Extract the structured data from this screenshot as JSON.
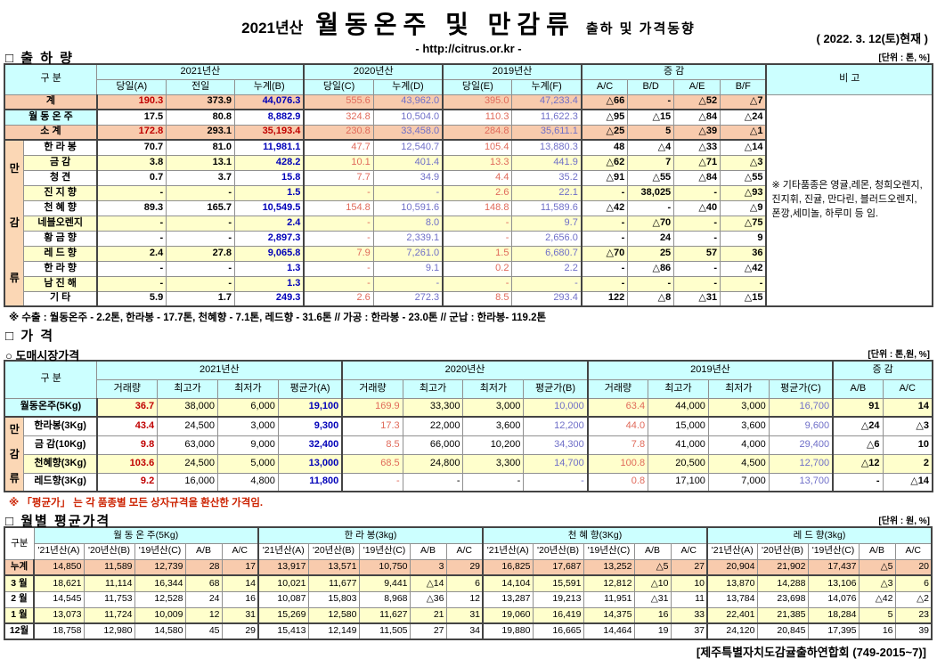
{
  "colors": {
    "header_bg": "#CCFFFF",
    "total_row": "#F8CBAD",
    "group_cell": "#FBD7B5",
    "alt_row": "#FFFFCC",
    "red_bold": "#C00000",
    "red_soft": "#E06A5A",
    "blue_bold": "#0000B8",
    "blue_soft": "#6F6FC8"
  },
  "header": {
    "year_label": "2021년산",
    "title": "월동온주 및 만감류",
    "subtitle": "출하 및 가격동향",
    "url": "- http://citrus.or.kr -",
    "date": "( 2022. 3. 12(토)현재 )"
  },
  "shipment": {
    "section_title": "□ 출 하 량",
    "unit": "[단위 : 톤, %]",
    "group_label": "만감류",
    "headers": {
      "gubun": "구     분",
      "y2021": "2021년산",
      "y2020": "2020년산",
      "y2019": "2019년산",
      "diff": "증        감",
      "remark": "비 고",
      "cols": [
        "당일(A)",
        "전일",
        "누계(B)",
        "당일(C)",
        "누계(D)",
        "당일(E)",
        "누계(F)",
        "A/C",
        "B/D",
        "A/E",
        "B/F"
      ]
    },
    "rows": [
      {
        "label": "계",
        "bg": "peach",
        "span2": true,
        "sep": true,
        "ov": {
          "0": "rb"
        },
        "v": [
          "190.3",
          "373.9",
          "44,076.3",
          "555.6",
          "43,962.0",
          "395.0",
          "47,233.4",
          "△66",
          "-",
          "△52",
          "△7"
        ]
      },
      {
        "label": "월 동 온 주",
        "bg": "white",
        "labelBg": "cyan",
        "span2": true,
        "v": [
          "17.5",
          "80.8",
          "8,882.9",
          "324.8",
          "10,504.0",
          "110.3",
          "11,622.3",
          "△95",
          "△15",
          "△84",
          "△24"
        ]
      },
      {
        "label": "소    계",
        "bg": "peach",
        "span2": true,
        "sep": true,
        "ov": {
          "0": "rb",
          "2": "rb"
        },
        "v": [
          "172.8",
          "293.1",
          "35,193.4",
          "230.8",
          "33,458.0",
          "284.8",
          "35,611.1",
          "△25",
          "5",
          "△39",
          "△1"
        ]
      },
      {
        "label": "한 라 봉",
        "bg": "white",
        "v": [
          "70.7",
          "81.0",
          "11,981.1",
          "47.7",
          "12,540.7",
          "105.4",
          "13,880.3",
          "48",
          "△4",
          "△33",
          "△14"
        ]
      },
      {
        "label": "금    감",
        "bg": "yellow",
        "v": [
          "3.8",
          "13.1",
          "428.2",
          "10.1",
          "401.4",
          "13.3",
          "441.9",
          "△62",
          "7",
          "△71",
          "△3"
        ]
      },
      {
        "label": "청    견",
        "bg": "white",
        "v": [
          "0.7",
          "3.7",
          "15.8",
          "7.7",
          "34.9",
          "4.4",
          "35.2",
          "△91",
          "△55",
          "△84",
          "△55"
        ]
      },
      {
        "label": "진 지 향",
        "bg": "yellow",
        "v": [
          "-",
          "-",
          "1.5",
          "-",
          "-",
          "2.6",
          "22.1",
          "-",
          "38,025",
          "-",
          "△93"
        ]
      },
      {
        "label": "천 혜 향",
        "bg": "white",
        "v": [
          "89.3",
          "165.7",
          "10,549.5",
          "154.8",
          "10,591.6",
          "148.8",
          "11,589.6",
          "△42",
          "-",
          "△40",
          "△9"
        ]
      },
      {
        "label": "네블오렌지",
        "bg": "yellow",
        "v": [
          "-",
          "-",
          "2.4",
          "-",
          "8.0",
          "-",
          "9.7",
          "-",
          "△70",
          "-",
          "△75"
        ]
      },
      {
        "label": "황 금 향",
        "bg": "white",
        "v": [
          "-",
          "-",
          "2,897.3",
          "-",
          "2,339.1",
          "-",
          "2,656.0",
          "-",
          "24",
          "-",
          "9"
        ]
      },
      {
        "label": "레 드 향",
        "bg": "yellow",
        "v": [
          "2.4",
          "27.8",
          "9,065.8",
          "7.9",
          "7,261.0",
          "1.5",
          "6,680.7",
          "△70",
          "25",
          "57",
          "36"
        ]
      },
      {
        "label": "한 라 향",
        "bg": "white",
        "v": [
          "-",
          "-",
          "1.3",
          "-",
          "9.1",
          "0.2",
          "2.2",
          "-",
          "△86",
          "-",
          "△42"
        ]
      },
      {
        "label": "남 진 해",
        "bg": "yellow",
        "v": [
          "-",
          "-",
          "1.3",
          "-",
          "-",
          "-",
          "-",
          "-",
          "-",
          "-",
          "-"
        ]
      },
      {
        "label": "기    타",
        "bg": "white",
        "v": [
          "5.9",
          "1.7",
          "249.3",
          "2.6",
          "272.3",
          "8.5",
          "293.4",
          "122",
          "△8",
          "△31",
          "△15"
        ]
      }
    ],
    "remark_note": "※ 기타품종은 영귤,레몬, 청희오렌지, 진지휘, 진귤, 만다린, 블러드오렌지, 폰깡,세미놀, 하루미 등 임.",
    "footnote": "※ 수출 : 월동온주 - 2.2톤, 한라봉 - 17.7톤,  천혜향 - 7.1톤, 레드향 - 31.6톤 // 가공 : 한라봉 - 23.0톤 // 군납 : 한라봉- 119.2톤"
  },
  "price": {
    "section_title": "□ 가     격",
    "sub_section_title": "○ 도매시장가격",
    "unit": "[단위 : 톤,원, %]",
    "group_label": "만감류",
    "headers": {
      "gubun": "구     분",
      "y2021": "2021년산",
      "y2020": "2020년산",
      "y2019": "2019년산",
      "diff": "증   감",
      "sub": [
        "거래량",
        "최고가",
        "최저가",
        "평균가(A)",
        "거래량",
        "최고가",
        "최저가",
        "평균가(B)",
        "거래량",
        "최고가",
        "최저가",
        "평균가(C)",
        "A/B",
        "A/C"
      ]
    },
    "rows": [
      {
        "label": "월동온주(5Kg)",
        "bg": "yellow",
        "labelBg": "cyan",
        "span2": true,
        "sep": true,
        "v": [
          "36.7",
          "38,000",
          "6,000",
          "19,100",
          "169.9",
          "33,300",
          "3,000",
          "10,000",
          "63.4",
          "44,000",
          "3,000",
          "16,700",
          "91",
          "14"
        ]
      },
      {
        "label": "한라봉(3Kg)",
        "bg": "white",
        "v": [
          "43.4",
          "24,500",
          "3,000",
          "9,300",
          "17.3",
          "22,000",
          "3,600",
          "12,200",
          "44.0",
          "15,000",
          "3,600",
          "9,600",
          "△24",
          "△3"
        ]
      },
      {
        "label": "금 감(10Kg)",
        "bg": "white",
        "v": [
          "9.8",
          "63,000",
          "9,000",
          "32,400",
          "8.5",
          "66,000",
          "10,200",
          "34,300",
          "7.8",
          "41,000",
          "4,000",
          "29,400",
          "△6",
          "10"
        ]
      },
      {
        "label": "천혜향(3Kg)",
        "bg": "yellow",
        "v": [
          "103.6",
          "24,500",
          "5,000",
          "13,000",
          "68.5",
          "24,800",
          "3,300",
          "14,700",
          "100.8",
          "20,500",
          "4,500",
          "12,700",
          "△12",
          "2"
        ]
      },
      {
        "label": "레드향(3Kg)",
        "bg": "white",
        "v": [
          "9.2",
          "16,000",
          "4,800",
          "11,800",
          "-",
          "-",
          "-",
          "-",
          "0.8",
          "17,100",
          "7,000",
          "13,700",
          "-",
          "△14"
        ]
      }
    ],
    "footnote": "※  「평균가」 는 각 품종별 모든 상자규격을 환산한 가격임."
  },
  "monthly": {
    "section_title": "□ 월별 평균가격",
    "unit": "[단위 : 원, %]",
    "headers": {
      "gubun": "구분",
      "groups": [
        "월 동 온 주(5Kg)",
        "한 라  봉(3kg)",
        "천 혜 향(3Kg)",
        "레 드 향(3kg)"
      ],
      "sub": [
        "'21년산(A)",
        "'20년산(B)",
        "'19년산(C)",
        "A/B",
        "A/C"
      ]
    },
    "rows": [
      {
        "label": "누계",
        "bg": "peach",
        "sep": true,
        "v": [
          "14,850",
          "11,589",
          "12,739",
          "28",
          "17",
          "13,917",
          "13,571",
          "10,750",
          "3",
          "29",
          "16,825",
          "17,687",
          "13,252",
          "△5",
          "27",
          "20,904",
          "21,902",
          "17,437",
          "△5",
          "20"
        ]
      },
      {
        "label": "3 월",
        "bg": "yellow",
        "v": [
          "18,621",
          "11,114",
          "16,344",
          "68",
          "14",
          "10,021",
          "11,677",
          "9,441",
          "△14",
          "6",
          "14,104",
          "15,591",
          "12,812",
          "△10",
          "10",
          "13,870",
          "14,288",
          "13,106",
          "△3",
          "6"
        ]
      },
      {
        "label": "2 월",
        "bg": "white",
        "v": [
          "14,545",
          "11,753",
          "12,528",
          "24",
          "16",
          "10,087",
          "15,803",
          "8,968",
          "△36",
          "12",
          "13,287",
          "19,213",
          "11,951",
          "△31",
          "11",
          "13,784",
          "23,698",
          "14,076",
          "△42",
          "△2"
        ]
      },
      {
        "label": "1 월",
        "bg": "yellow",
        "v": [
          "13,073",
          "11,724",
          "10,009",
          "12",
          "31",
          "15,269",
          "12,580",
          "11,627",
          "21",
          "31",
          "19,060",
          "16,419",
          "14,375",
          "16",
          "33",
          "22,401",
          "21,385",
          "18,284",
          "5",
          "23"
        ]
      },
      {
        "label": "12월",
        "bg": "white",
        "top": true,
        "v": [
          "18,758",
          "12,980",
          "14,580",
          "45",
          "29",
          "15,413",
          "12,149",
          "11,505",
          "27",
          "34",
          "19,880",
          "16,665",
          "14,464",
          "19",
          "37",
          "24,120",
          "20,845",
          "17,395",
          "16",
          "39"
        ]
      }
    ]
  },
  "footer": "[제주특별자치도감귤출하연합회 (749-2015~7)]"
}
